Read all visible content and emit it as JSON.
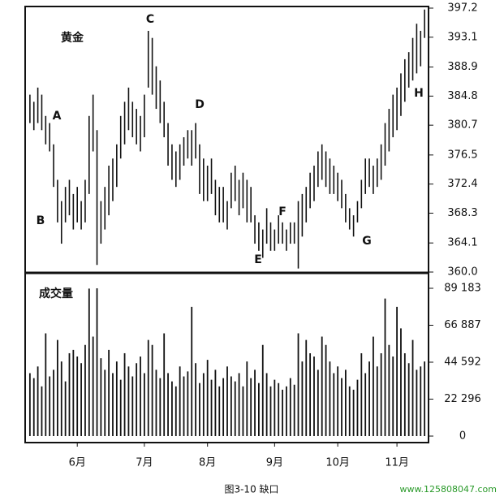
{
  "chart_data": [
    {
      "type": "hilo",
      "title": "黄金",
      "annotations": [
        "A",
        "B",
        "C",
        "D",
        "E",
        "F",
        "G",
        "H"
      ],
      "xlim": [
        -1,
        101
      ],
      "xticks": [
        {
          "value": 12,
          "label": "6月"
        },
        {
          "value": 29,
          "label": "7月"
        },
        {
          "value": 45,
          "label": "8月"
        },
        {
          "value": 62,
          "label": "9月"
        },
        {
          "value": 78,
          "label": "10月"
        },
        {
          "value": 93,
          "label": "11月"
        }
      ],
      "ylim": [
        360,
        397.2
      ],
      "yticks": [
        {
          "value": 360,
          "label": "360.0"
        },
        364.1,
        368.3,
        372.4,
        376.5,
        380.7,
        384.8,
        388.9,
        393.1,
        397.2
      ],
      "color": "#111111",
      "high": [
        385,
        384,
        386,
        385,
        382,
        381,
        378,
        373,
        370,
        372,
        373,
        371,
        372,
        370,
        373,
        382,
        385,
        380,
        370,
        372,
        375,
        376,
        378,
        382,
        384,
        386,
        384,
        383,
        382,
        385,
        394,
        393,
        389,
        387,
        384,
        381,
        378,
        377,
        378,
        379,
        380,
        380,
        381,
        378,
        376,
        375,
        376,
        373,
        372,
        372,
        370,
        374,
        375,
        373,
        374,
        373,
        372,
        368,
        367,
        366,
        369,
        367,
        366,
        368,
        367,
        366,
        367,
        367,
        370,
        371,
        372,
        374,
        375,
        377,
        378,
        377,
        376,
        375,
        374,
        373,
        371,
        369,
        368,
        370,
        373,
        376,
        376,
        375,
        376,
        378,
        381,
        383,
        385,
        386,
        388,
        390,
        391,
        393,
        395,
        394,
        397
      ],
      "low": [
        381,
        380,
        381,
        380,
        378,
        377,
        372,
        367,
        364,
        367,
        368,
        366,
        367,
        366,
        367,
        371,
        377,
        361,
        364,
        366,
        368,
        370,
        372,
        376,
        378,
        380,
        379,
        378,
        377,
        379,
        386,
        385,
        383,
        381,
        379,
        375,
        373,
        372,
        373,
        375,
        376,
        375,
        376,
        371,
        370,
        370,
        371,
        368,
        367,
        367,
        366,
        369,
        370,
        368,
        369,
        367,
        367,
        364,
        363,
        362,
        364,
        363,
        363,
        364,
        364,
        363,
        364,
        364,
        360.5,
        365,
        367,
        369,
        370,
        372,
        373,
        372,
        371,
        371,
        370,
        369,
        367,
        366,
        365,
        367,
        369,
        371,
        372,
        371,
        372,
        373,
        375,
        377,
        379,
        380,
        382,
        384,
        386,
        387,
        388,
        389,
        393
      ]
    },
    {
      "type": "bar",
      "title": "成交量",
      "xlim": [
        -1,
        101
      ],
      "ylim": [
        0,
        98000
      ],
      "yticks": [
        0,
        {
          "value": 22296,
          "label": "22 296"
        },
        {
          "value": 44592,
          "label": "44 592"
        },
        {
          "value": 66887,
          "label": "66 887"
        },
        {
          "value": 89183,
          "label": "89 183"
        }
      ],
      "color": "#111111",
      "values": [
        38000,
        35000,
        42000,
        30000,
        62000,
        36000,
        40000,
        58000,
        45000,
        33000,
        50000,
        52000,
        48000,
        44000,
        55000,
        89000,
        60000,
        89183,
        47000,
        40000,
        52000,
        38000,
        45000,
        34000,
        50000,
        42000,
        36000,
        44000,
        48000,
        38000,
        58000,
        55000,
        40000,
        35000,
        62000,
        38000,
        33000,
        30000,
        42000,
        36000,
        39000,
        78000,
        44000,
        32000,
        38000,
        46000,
        34000,
        40000,
        30000,
        35000,
        42000,
        36000,
        33000,
        38000,
        30000,
        45000,
        35000,
        40000,
        32000,
        55000,
        38000,
        30000,
        34000,
        32000,
        28000,
        30000,
        35000,
        31000,
        62000,
        45000,
        58000,
        50000,
        48000,
        40000,
        60000,
        55000,
        45000,
        38000,
        42000,
        35000,
        40000,
        30000,
        28000,
        34000,
        50000,
        38000,
        45000,
        60000,
        42000,
        50000,
        83000,
        55000,
        48000,
        78000,
        65000,
        50000,
        44000,
        58000,
        40000,
        42000,
        45000
      ]
    }
  ],
  "caption": "图3-10 缺口",
  "watermark": "www.125808047.com"
}
